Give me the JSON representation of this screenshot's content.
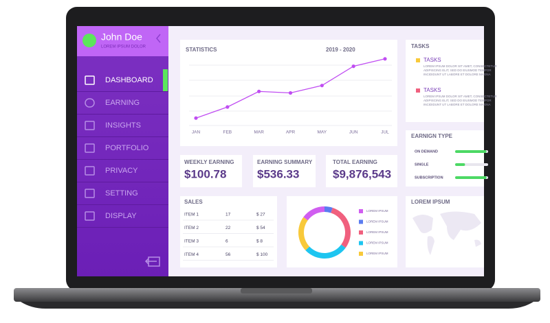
{
  "sidebar": {
    "user": {
      "name": "John Doe",
      "subtitle": "LOREM IPSUM DOLOR"
    },
    "menu": [
      "DASHBOARD",
      "EARNING",
      "INSIGHTS",
      "PORTFOLIO",
      "PRIVACY",
      "SETTING",
      "DISPLAY"
    ]
  },
  "chart_data": [
    {
      "type": "line",
      "title": "STATISTICS",
      "subtitle": "2019 - 2020",
      "categories": [
        "JAN",
        "FEB",
        "MAR",
        "APR",
        "MAY",
        "JUN",
        "JUL"
      ],
      "values": [
        10,
        25,
        46,
        44,
        54,
        80,
        90
      ],
      "color": "#c04df2",
      "ylim": [
        0,
        100
      ]
    },
    {
      "type": "pie",
      "categories": [
        "LOREM IPSUM",
        "LOREM IPSUM",
        "LOREM IPSUM",
        "LOREM IPSUM",
        "LOREM IPSUM"
      ],
      "values": [
        15,
        5,
        30,
        28,
        22
      ],
      "colors": [
        "#d05ef0",
        "#5b7cf0",
        "#f0607e",
        "#1ec5f0",
        "#f8c93a"
      ]
    },
    {
      "type": "progress",
      "title": "EARNIGN TYPE",
      "categories": [
        "ON DEMAND",
        "SINGLE",
        "SUBSCRIPTION"
      ],
      "values": [
        95,
        30,
        95
      ],
      "color": "#4cd964",
      "xlim": [
        0,
        100
      ]
    }
  ],
  "tasks": {
    "title": "TASKS",
    "items": [
      {
        "title": "TASKS",
        "color": "#f8c93a",
        "lines": [
          "LOREM IPSUM DOLOR SIT AMET, CONSECTETUR",
          "ADIPISCING ELIT, SED DO EIUSMOD TEMPOR",
          "INCIDIDUNT UT LABORE ET DOLORE MAGNA"
        ]
      },
      {
        "title": "TASKS",
        "color": "#f0607e",
        "lines": [
          "LOREM IPSUM DOLOR SIT AMET, CONSECTETUR",
          "ADIPISCING ELIT, SED DO EIUSMOD TEMPOR",
          "INCIDIDUNT UT LABORE ET DOLORE MAGNA"
        ]
      }
    ]
  },
  "earnings": [
    {
      "label": "WEEKLY EARNING",
      "value": "$100.78"
    },
    {
      "label": "EARNING SUMMARY",
      "value": "$536.33"
    },
    {
      "label": "TOTAL EARNING",
      "value": "$9,876,543"
    }
  ],
  "sales": {
    "title": "SALES",
    "rows": [
      [
        "ITEM 1",
        "17",
        "$ 27"
      ],
      [
        "ITEM 2",
        "22",
        "$ 54"
      ],
      [
        "ITEM 3",
        "6",
        "$ 8"
      ],
      [
        "ITEM 4",
        "56",
        "$ 100"
      ]
    ]
  },
  "map": {
    "title": "LOREM IPSUM"
  }
}
